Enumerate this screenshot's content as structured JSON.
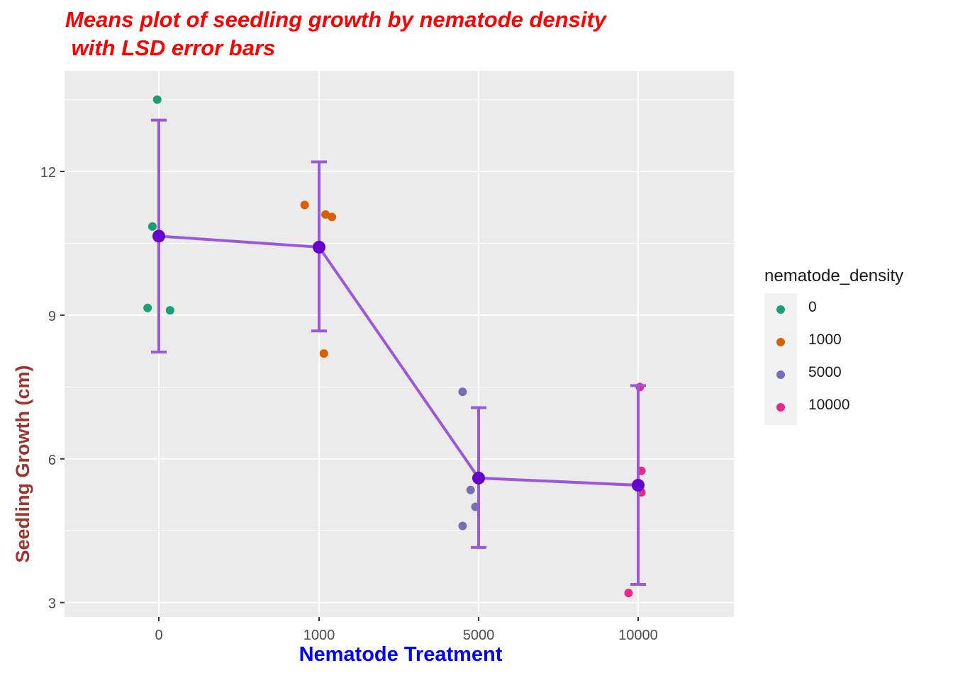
{
  "chart_data": {
    "type": "scatter",
    "title": "Means plot of seedling growth by nematode density\n with LSD error bars",
    "title_lines": [
      "Means plot of seedling growth by nematode density",
      " with LSD error bars"
    ],
    "xlabel": "Nematode Treatment",
    "ylabel": "Seedling Growth (cm)",
    "categories": [
      "0",
      "1000",
      "5000",
      "10000"
    ],
    "y_ticks": [
      3,
      6,
      9,
      12
    ],
    "ylim": [
      2.7,
      14.1
    ],
    "grid": true,
    "legend": {
      "title": "nematode_density",
      "placement": "right",
      "entries": [
        {
          "label": "0",
          "color": "#1b9e77"
        },
        {
          "label": "1000",
          "color": "#d95f02"
        },
        {
          "label": "5000",
          "color": "#7570b3"
        },
        {
          "label": "10000",
          "color": "#e7298a"
        }
      ]
    },
    "points": [
      {
        "category": "0",
        "y": 13.5,
        "jitter": -0.01
      },
      {
        "category": "0",
        "y": 10.85,
        "jitter": -0.04
      },
      {
        "category": "0",
        "y": 9.15,
        "jitter": -0.07
      },
      {
        "category": "0",
        "y": 9.1,
        "jitter": 0.07
      },
      {
        "category": "1000",
        "y": 11.3,
        "jitter": -0.09
      },
      {
        "category": "1000",
        "y": 11.1,
        "jitter": 0.04
      },
      {
        "category": "1000",
        "y": 11.05,
        "jitter": 0.08
      },
      {
        "category": "1000",
        "y": 8.2,
        "jitter": 0.03
      },
      {
        "category": "5000",
        "y": 7.4,
        "jitter": -0.1
      },
      {
        "category": "5000",
        "y": 5.35,
        "jitter": -0.05
      },
      {
        "category": "5000",
        "y": 5.0,
        "jitter": -0.02
      },
      {
        "category": "5000",
        "y": 4.6,
        "jitter": -0.1
      },
      {
        "category": "10000",
        "y": 7.5,
        "jitter": 0.01
      },
      {
        "category": "10000",
        "y": 5.75,
        "jitter": 0.02
      },
      {
        "category": "10000",
        "y": 5.3,
        "jitter": 0.02
      },
      {
        "category": "10000",
        "y": 3.2,
        "jitter": -0.06
      }
    ],
    "means": {
      "name": "",
      "color": "#6600cc",
      "line_color": "#9b59d9",
      "values": [
        10.65,
        10.42,
        5.6,
        5.45
      ],
      "lsd_lower": [
        8.23,
        8.67,
        4.15,
        3.38
      ],
      "lsd_upper": [
        13.07,
        12.2,
        7.07,
        7.53
      ]
    }
  }
}
